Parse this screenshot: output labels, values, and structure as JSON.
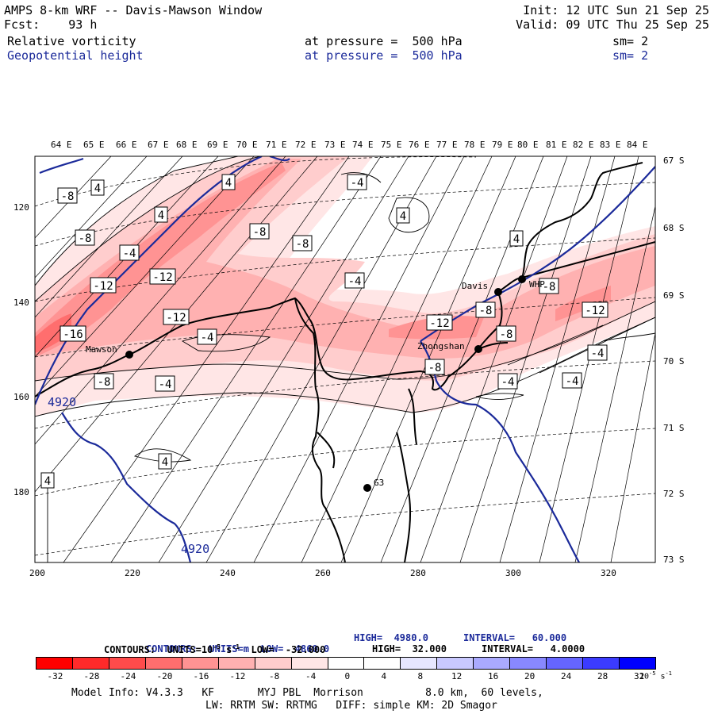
{
  "header": {
    "title": "AMPS 8-km WRF -- Davis-Mawson Window",
    "fcst": "Fcst:    93 h",
    "init": "Init: 12 UTC Sun 21 Sep 25",
    "valid": "Valid: 09 UTC Thu 25 Sep 25",
    "field1": {
      "name": "Relative vorticity",
      "level": "at pressure =  500 hPa",
      "sm": "sm= 2"
    },
    "field2": {
      "name": "Geopotential height",
      "level": "at pressure =  500 hPa",
      "sm": "sm= 2"
    }
  },
  "longitude_labels": [
    "64 E",
    "65 E",
    "66 E",
    "67 E",
    "68 E",
    "69 E",
    "70 E",
    "71 E",
    "72 E",
    "73 E",
    "74 E",
    "75 E",
    "76 E",
    "77 E",
    "78 E",
    "79 E",
    "80 E",
    "81 E",
    "82 E",
    "83 E",
    "84 E"
  ],
  "latitude_labels": [
    "67 S",
    "68 S",
    "69 S",
    "70 S",
    "71 S",
    "72 S",
    "73 S"
  ],
  "y_ticks": [
    "120",
    "140",
    "160",
    "180"
  ],
  "x_ticks": [
    "200",
    "220",
    "240",
    "260",
    "280",
    "300",
    "320"
  ],
  "stations": [
    {
      "name": "Mawson"
    },
    {
      "name": "Davis"
    },
    {
      "name": "Zhongshan"
    },
    {
      "name": "G3"
    },
    {
      "name": "WHP"
    }
  ],
  "vorticity_labels": [
    "-8",
    "4",
    "4",
    "-8",
    "-4",
    "4",
    "-8",
    "-8",
    "4",
    "-4",
    "-12",
    "-12",
    "-4",
    "4",
    "-12",
    "-8",
    "-8",
    "-16",
    "-4",
    "-12",
    "-8",
    "-12",
    "-4",
    "-8",
    "-8",
    "-4",
    "-4",
    "-4",
    "4",
    "4"
  ],
  "height_labels": [
    "4920",
    "4920"
  ],
  "colors": {
    "geopotential": "#1b2a9a"
  },
  "footer": {
    "contours1": {
      "label": "CONTOURS:  UNITS=m  LOW=  4860.0",
      "high": "HIGH=  4980.0",
      "interval": "INTERVAL=   60.000"
    },
    "contours2": {
      "label": "CONTOURS:  UNITS=10",
      "units_sup": "-5",
      "units_end": " s",
      "units_sup2": "-1",
      "low": "  LOW=  -32.000",
      "high": "HIGH=  32.000",
      "interval": "INTERVAL=   4.0000"
    },
    "colorbar_labels": [
      "-32",
      "-28",
      "-24",
      "-20",
      "-16",
      "-12",
      "-8",
      "-4",
      "0",
      "4",
      "8",
      "12",
      "16",
      "20",
      "24",
      "28",
      "32"
    ],
    "colorbar_unit": "10",
    "colorbar_unit_sup": "-5",
    "colorbar_unit_end": " s",
    "colorbar_unit_sup2": "-1",
    "colorbar_colors": [
      "#ff0000",
      "#ff2a2a",
      "#ff4b4b",
      "#ff6e6e",
      "#ff9393",
      "#ffb1b1",
      "#ffcdcd",
      "#ffe6e6",
      "#ffffff",
      "#ffffff",
      "#e6e6ff",
      "#c9c9ff",
      "#aaaaff",
      "#8888ff",
      "#6565ff",
      "#3b3bff",
      "#0000ff"
    ],
    "model_info": "Model Info: V4.3.3   KF       MYJ PBL  Morrison          8.0 km,  60 levels,",
    "model_info2": "LW: RRTM SW: RRTMG   DIFF: simple KM: 2D Smagor"
  }
}
